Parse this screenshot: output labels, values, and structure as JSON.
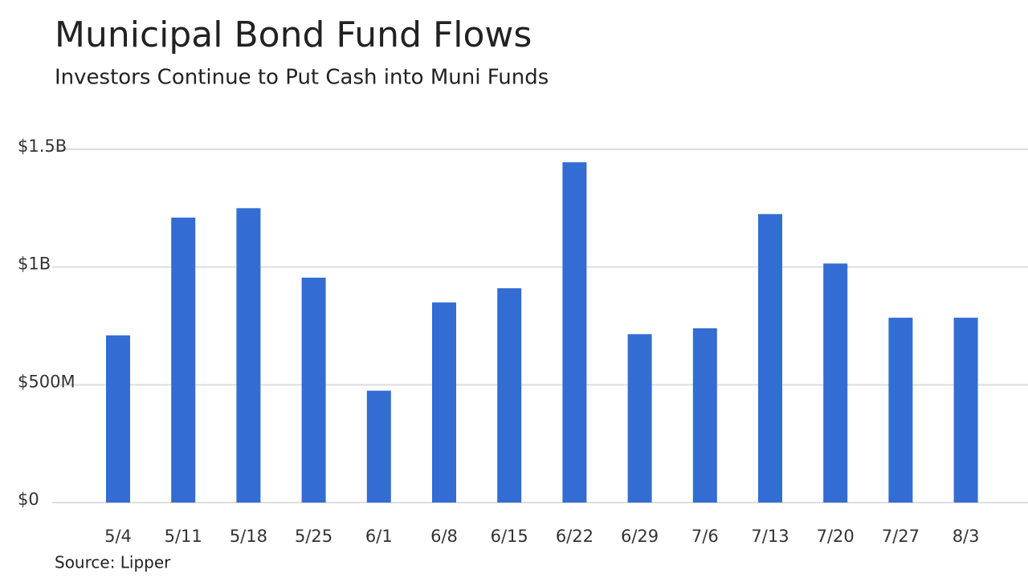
{
  "chart_data": {
    "type": "bar",
    "title": "Municipal Bond Fund Flows",
    "subtitle": "Investors Continue to Put Cash into Muni Funds",
    "source": "Source: Lipper",
    "categories": [
      "5/4",
      "5/11",
      "5/18",
      "5/25",
      "6/1",
      "6/8",
      "6/15",
      "6/22",
      "6/29",
      "7/6",
      "7/13",
      "7/20",
      "7/27",
      "8/3"
    ],
    "values": [
      710000000,
      1210000000,
      1250000000,
      955000000,
      475000000,
      850000000,
      910000000,
      1445000000,
      715000000,
      740000000,
      1225000000,
      1015000000,
      785000000,
      785000000
    ],
    "color": "#336dd3",
    "ylim": [
      0,
      1500000000
    ],
    "yticks": [
      {
        "value": 0,
        "label": "$0"
      },
      {
        "value": 500000000,
        "label": "$500M"
      },
      {
        "value": 1000000000,
        "label": "$1B"
      },
      {
        "value": 1500000000,
        "label": "$1.5B"
      }
    ],
    "grid": true
  }
}
